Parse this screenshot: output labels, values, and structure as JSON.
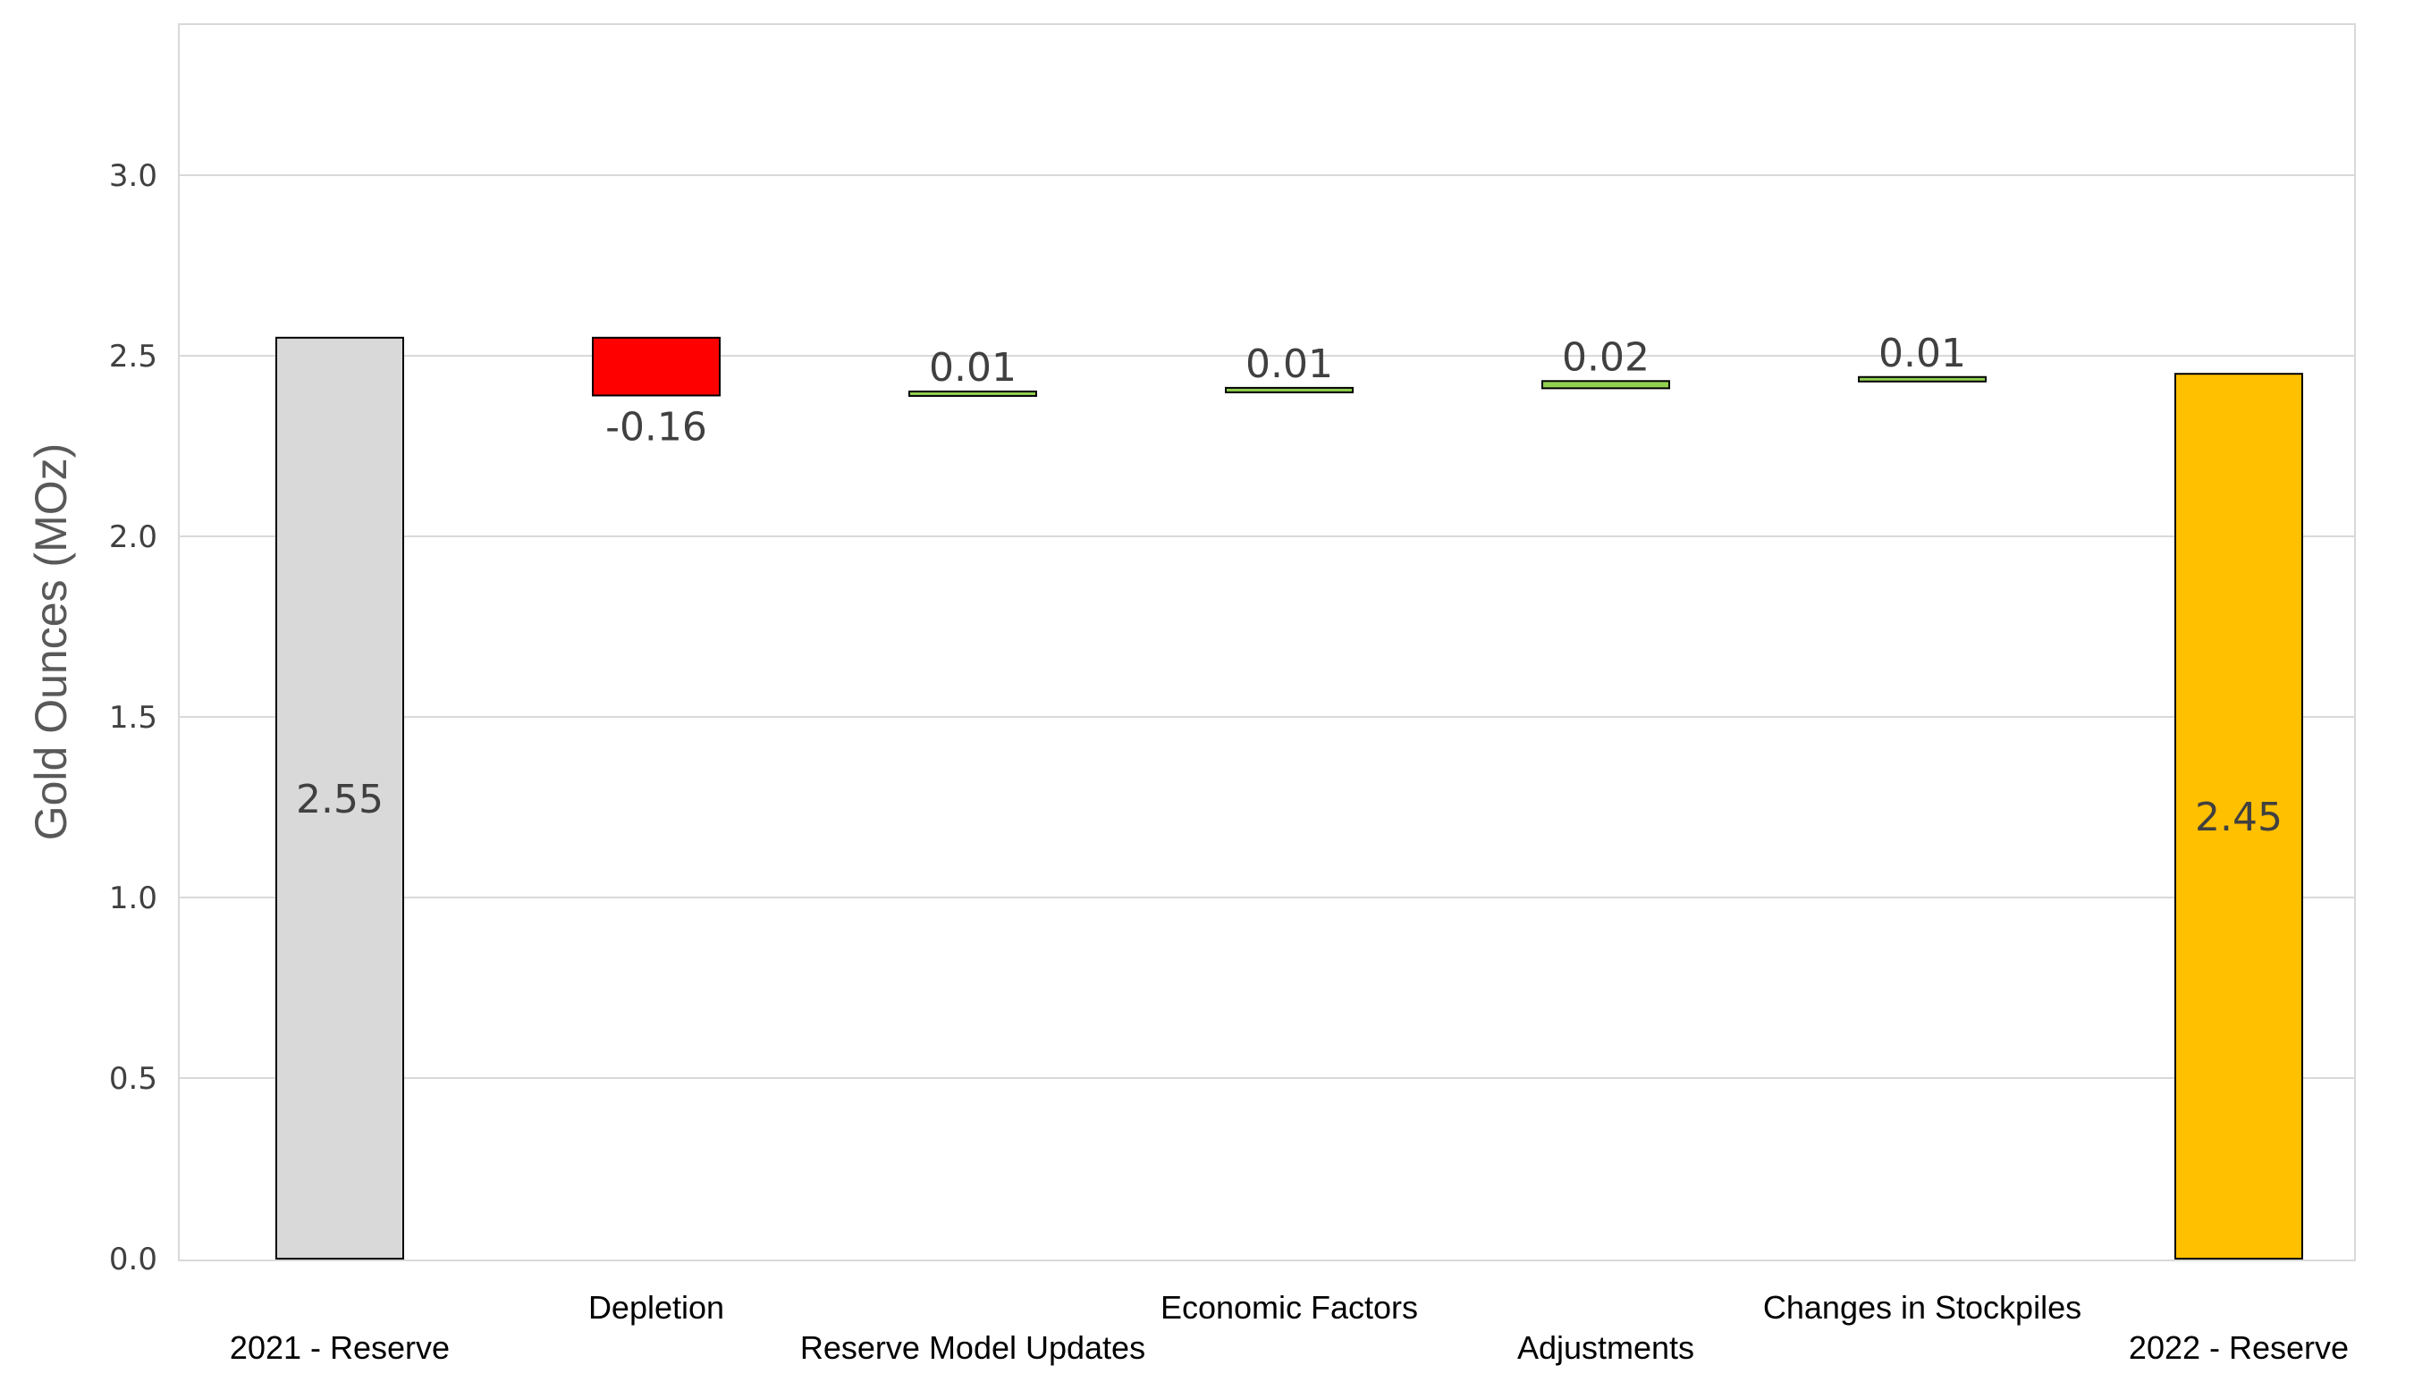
{
  "chart_data": {
    "type": "bar",
    "subtype": "waterfall",
    "title": "",
    "xlabel": "",
    "ylabel": "Gold Ounces (MOz)",
    "ylim": [
      0,
      3.4
    ],
    "yticks": [
      "0.0",
      "0.5",
      "1.0",
      "1.5",
      "2.0",
      "2.5",
      "3.0"
    ],
    "ytick_values": [
      0,
      0.5,
      1.0,
      1.5,
      2.0,
      2.5,
      3.0
    ],
    "grid": true,
    "legend": "none",
    "categories": [
      "2021 - Reserve",
      "Depletion",
      "Reserve Model Updates",
      "Economic Factors",
      "Adjustments",
      "Changes in Stockpiles",
      "2022 - Reserve"
    ],
    "values": [
      2.55,
      -0.16,
      0.01,
      0.01,
      0.02,
      0.01,
      2.45
    ],
    "data_labels": [
      "2.55",
      "-0.16",
      "0.01",
      "0.01",
      "0.02",
      "0.01",
      "2.45"
    ],
    "bar_kinds": [
      "total",
      "delta",
      "delta",
      "delta",
      "delta",
      "delta",
      "total"
    ],
    "bar_starts": [
      0,
      2.55,
      2.39,
      2.4,
      2.41,
      2.43,
      0
    ],
    "bar_ends": [
      2.55,
      2.39,
      2.4,
      2.41,
      2.43,
      2.44,
      2.45
    ],
    "colors": [
      "#d9d9d9",
      "#ff0000",
      "#92d050",
      "#92d050",
      "#92d050",
      "#92d050",
      "#ffc000"
    ]
  }
}
